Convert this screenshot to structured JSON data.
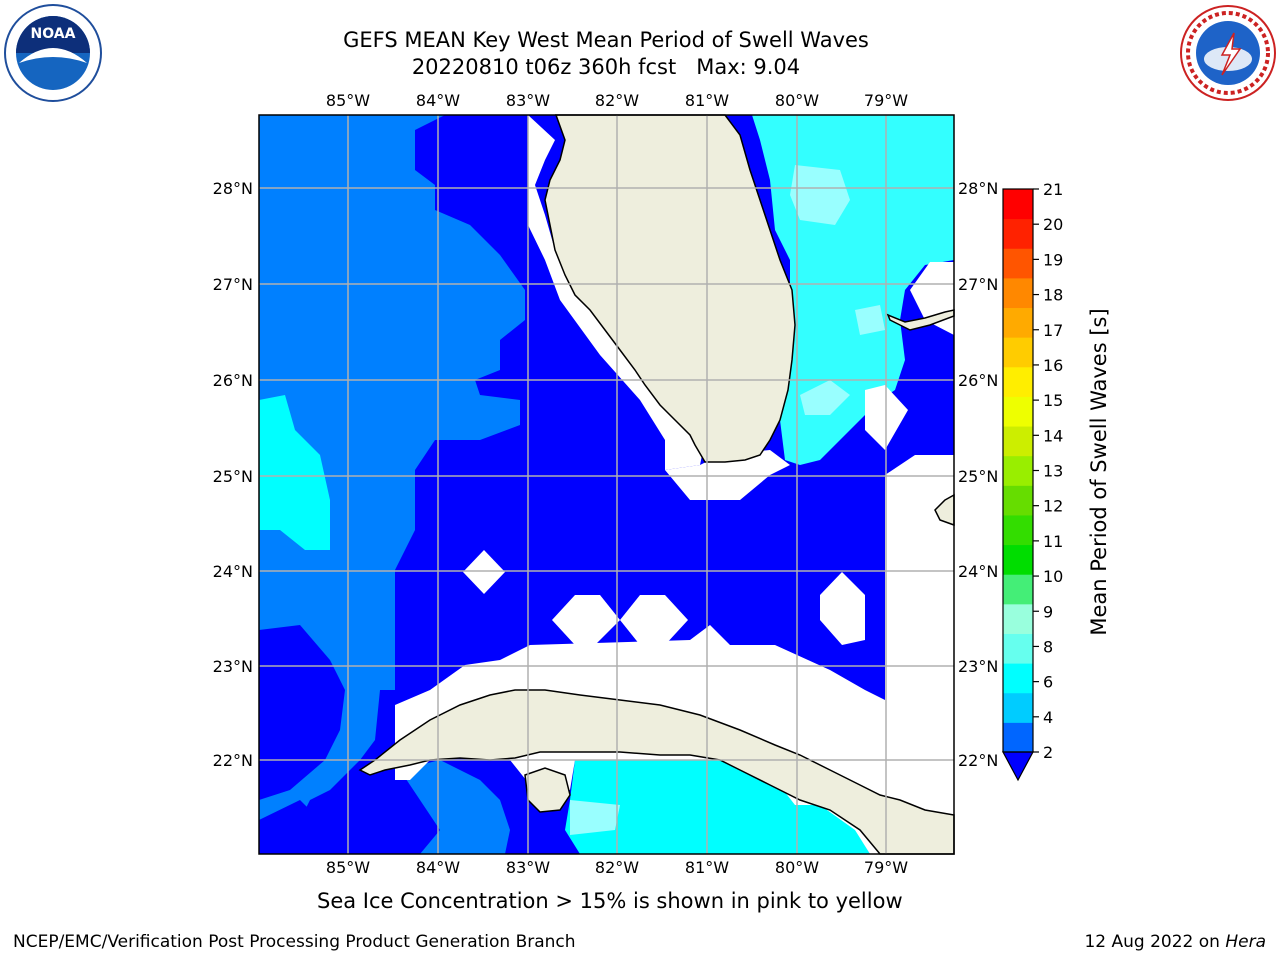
{
  "title": {
    "line1": "GEFS MEAN Key West Mean Period of Swell Waves",
    "line2": "20220810 t06z 360h fcst   Max: 9.04"
  },
  "logos": {
    "left": {
      "icon": "noaa-logo",
      "text": "NOAA"
    },
    "right": {
      "icon": "nws-logo",
      "text": "NATIONAL WEATHER SERVICE"
    }
  },
  "map": {
    "longitude_ticks": [
      "85°W",
      "84°W",
      "83°W",
      "82°W",
      "81°W",
      "80°W",
      "79°W"
    ],
    "latitude_ticks": [
      "28°N",
      "27°N",
      "26°N",
      "25°N",
      "24°N",
      "23°N",
      "22°N"
    ],
    "colors": {
      "land": "#eeeedd",
      "mask": "#ffffff",
      "grid": "#b0b0b0"
    }
  },
  "colorbar": {
    "label": "Mean Period of Swell Waves [s]",
    "ticks": [
      "2",
      "4",
      "6",
      "8",
      "9",
      "10",
      "11",
      "12",
      "13",
      "14",
      "15",
      "16",
      "17",
      "18",
      "19",
      "20",
      "21"
    ],
    "under_color": "#0000ff",
    "segment_colors": [
      "#0066ff",
      "#00ccff",
      "#00ffff",
      "#66ffee",
      "#99ffdd",
      "#44ee77",
      "#00dd00",
      "#33dd00",
      "#66dd00",
      "#99ee00",
      "#ccee00",
      "#eeff00",
      "#ffee00",
      "#ffcc00",
      "#ffaa00",
      "#ff8800",
      "#ff5500",
      "#ff2200",
      "#ff0000"
    ]
  },
  "caption": "Sea Ice Concentration > 15% is shown in pink to yellow",
  "footer": {
    "left": "NCEP/EMC/Verification Post Processing Product Generation Branch",
    "right_date": "12 Aug 2022 on ",
    "right_host": "Hera"
  }
}
